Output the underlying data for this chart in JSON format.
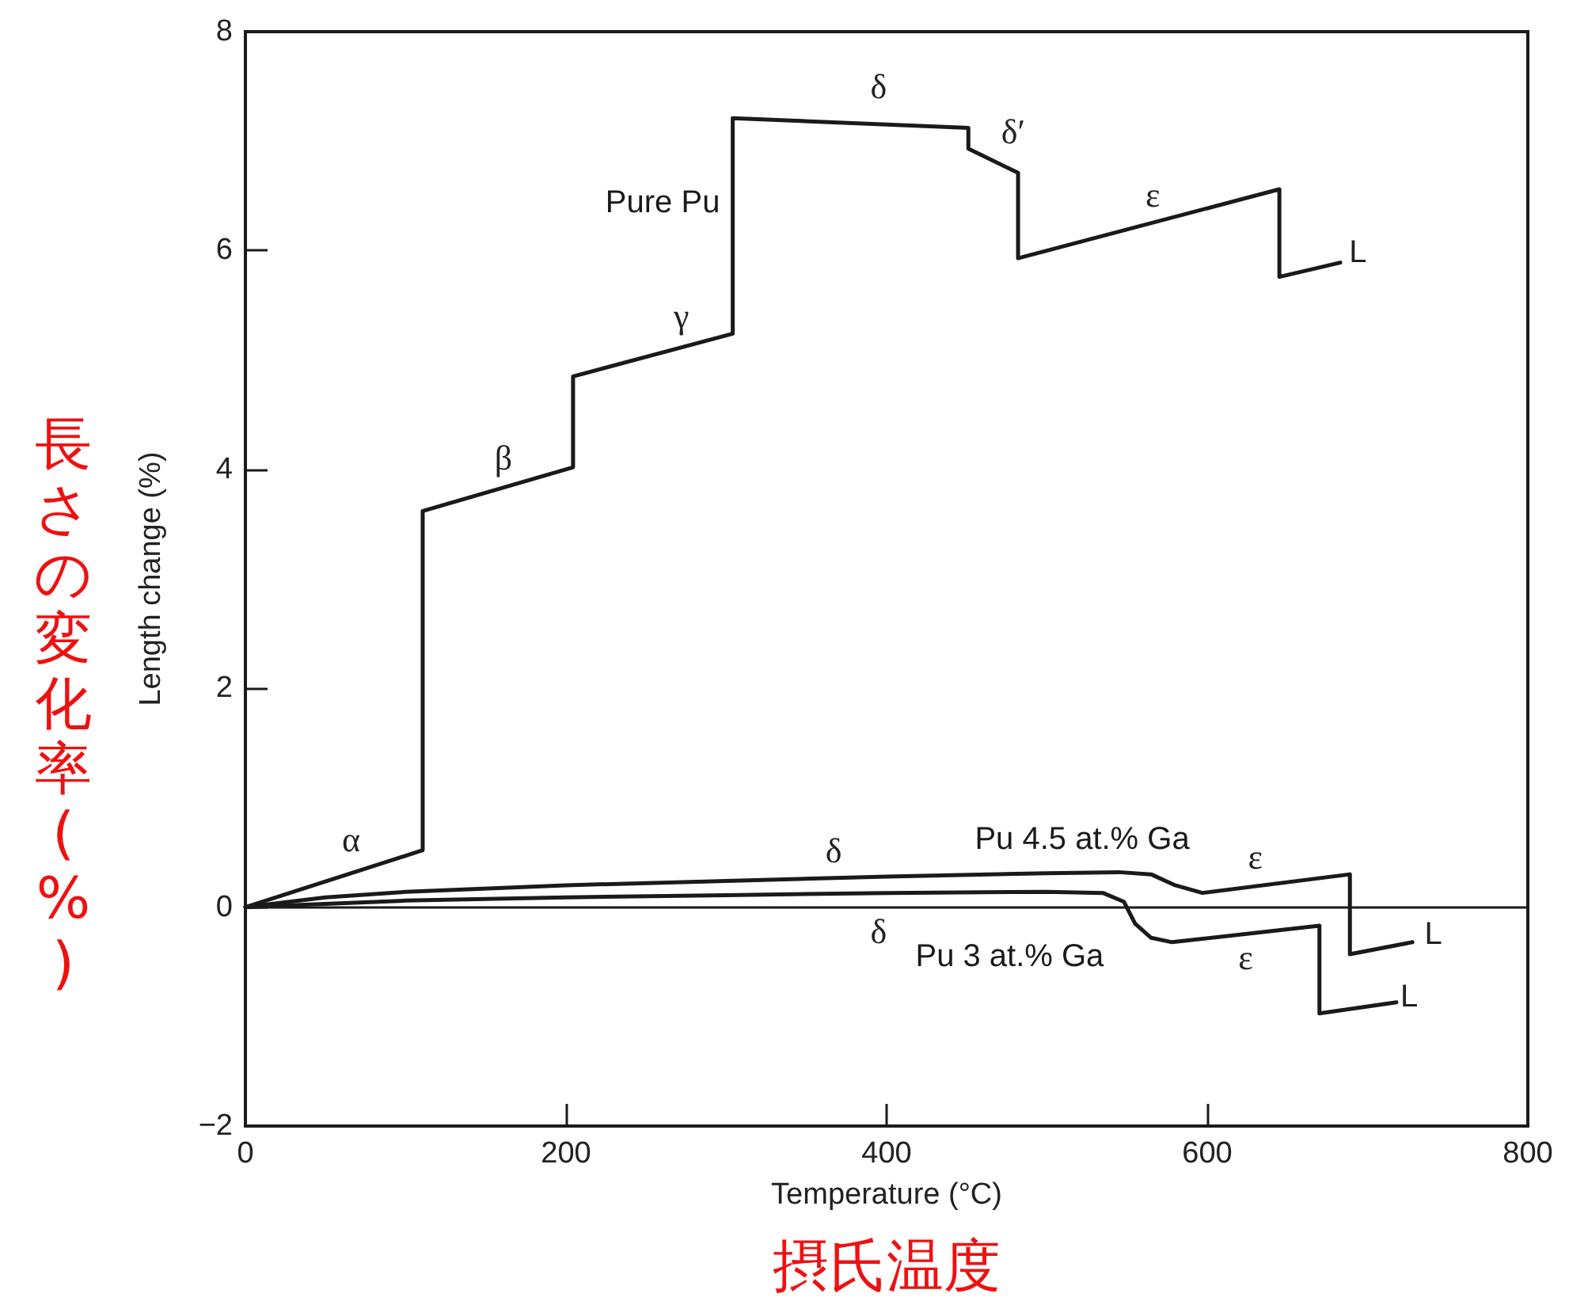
{
  "chart_data": {
    "type": "line",
    "xlabel": "Temperature (°C)",
    "ylabel": "Length change (%)",
    "xlim": [
      0,
      800
    ],
    "xticks": [
      0,
      200,
      400,
      600,
      800
    ],
    "ylim": [
      -2,
      8
    ],
    "yticks": [
      -2,
      0,
      2,
      4,
      6,
      8
    ],
    "grid": false,
    "legend": false,
    "marker": "none",
    "line_style": "solid",
    "series": [
      {
        "name": "Pure Pu",
        "color": "#1a1a1a",
        "x": [
          0,
          110.6,
          110.6,
          204.4,
          204.4,
          304,
          304,
          451,
          451,
          482,
          482,
          645,
          645,
          683
        ],
        "values": [
          0,
          0.52,
          3.62,
          4.02,
          4.85,
          5.24,
          7.21,
          7.12,
          6.93,
          6.71,
          5.93,
          6.56,
          5.76,
          5.89
        ]
      },
      {
        "name": "Pu 4.5 at.% Ga",
        "color": "#1a1a1a",
        "x": [
          0,
          50,
          100,
          200,
          300,
          400,
          500,
          545,
          565,
          580,
          597,
          689,
          689,
          728
        ],
        "values": [
          0,
          0.09,
          0.14,
          0.2,
          0.24,
          0.28,
          0.31,
          0.32,
          0.3,
          0.2,
          0.13,
          0.3,
          -0.43,
          -0.32
        ]
      },
      {
        "name": "Pu 3 at.% Ga",
        "color": "#1a1a1a",
        "x": [
          0,
          100,
          200,
          300,
          400,
          500,
          535,
          548,
          555,
          565,
          578,
          670,
          670,
          718
        ],
        "values": [
          0,
          0.06,
          0.09,
          0.11,
          0.13,
          0.14,
          0.13,
          0.05,
          -0.15,
          -0.28,
          -0.32,
          -0.17,
          -0.97,
          -0.87
        ]
      }
    ],
    "ref_lines": [
      {
        "axis": "y",
        "value": 0,
        "color": "#1a1a1a"
      }
    ],
    "annotations": [
      "α",
      "β",
      "γ",
      "δ",
      "δ′",
      "ε",
      "L",
      "δ",
      "δ",
      "ε",
      "ε",
      "L",
      "L",
      "長さの変化率(%)",
      "摂氏温度"
    ]
  }
}
